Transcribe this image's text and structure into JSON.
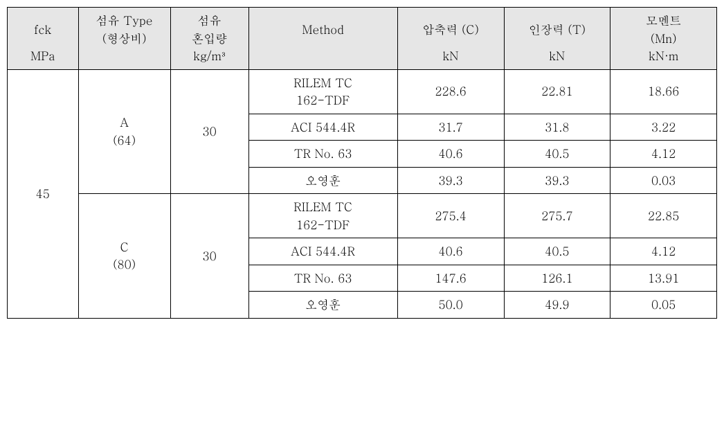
{
  "headers": {
    "fck_top": "fck",
    "fck_unit": "MPa",
    "type_top": "섬유 Type",
    "type_sub": "(형상비)",
    "type_unit": "",
    "mix_top": "섬유",
    "mix_mid": "혼입량",
    "mix_unit": "kg/m³",
    "method": "Method",
    "method_unit": "",
    "c_top": "압축력 (C)",
    "c_unit": "kN",
    "t_top": "인장력 (T)",
    "t_unit": "kN",
    "m_top": "모멘트",
    "m_sub": "(Mn)",
    "m_unit": "kN·m"
  },
  "fck_value": "45",
  "groups": [
    {
      "type_line1": "A",
      "type_line2": "(64)",
      "mix": "30",
      "rows": [
        {
          "method_l1": "RILEM TC",
          "method_l2": "162-TDF",
          "c": "228.6",
          "t": "22.81",
          "m": "18.66"
        },
        {
          "method_l1": "ACI 544.4R",
          "method_l2": "",
          "c": "31.7",
          "t": "31.8",
          "m": "3.22"
        },
        {
          "method_l1": "TR No. 63",
          "method_l2": "",
          "c": "40.6",
          "t": "40.5",
          "m": "4.12"
        },
        {
          "method_l1": "오영훈",
          "method_l2": "",
          "c": "39.3",
          "t": "39.3",
          "m": "0.03"
        }
      ]
    },
    {
      "type_line1": "C",
      "type_line2": "(80)",
      "mix": "30",
      "rows": [
        {
          "method_l1": "RILEM TC",
          "method_l2": "162-TDF",
          "c": "275.4",
          "t": "275.7",
          "m": "22.85"
        },
        {
          "method_l1": "ACI 544.4R",
          "method_l2": "",
          "c": "40.6",
          "t": "40.5",
          "m": "4.12"
        },
        {
          "method_l1": "TR No. 63",
          "method_l2": "",
          "c": "147.6",
          "t": "126.1",
          "m": "13.91"
        },
        {
          "method_l1": "오영훈",
          "method_l2": "",
          "c": "50.0",
          "t": "49.9",
          "m": "0.05"
        }
      ]
    }
  ],
  "style": {
    "header_bg": "#e6e6e6",
    "border_color": "#000000",
    "font_family": "Batang, serif",
    "font_size_pt": 13
  }
}
